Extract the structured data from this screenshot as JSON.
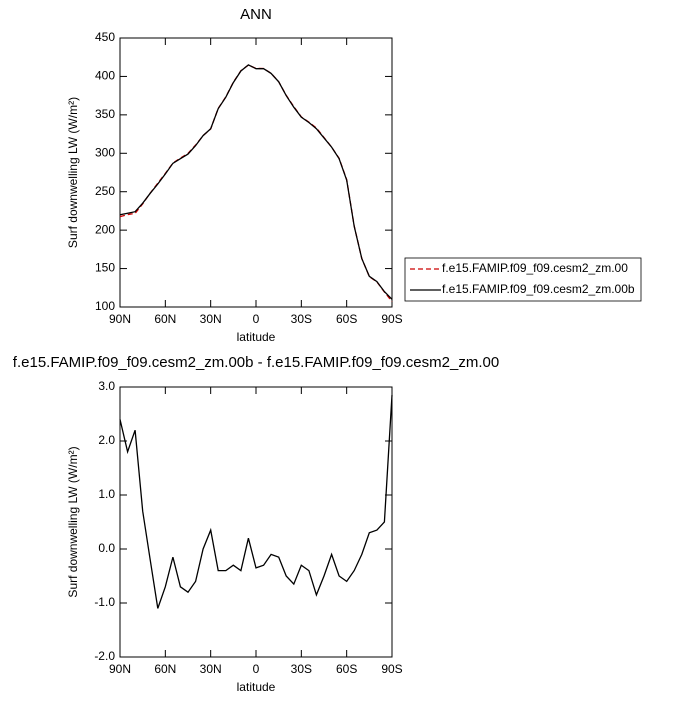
{
  "chart_data": [
    {
      "type": "line",
      "title": "ANN",
      "xlabel": "latitude",
      "ylabel": "Surf downwelling LW (W/m²)",
      "x": [
        90,
        85,
        80,
        75,
        70,
        65,
        60,
        55,
        50,
        45,
        40,
        35,
        30,
        25,
        20,
        15,
        10,
        5,
        0,
        -5,
        -10,
        -15,
        -20,
        -25,
        -30,
        -35,
        -40,
        -45,
        -50,
        -55,
        -60,
        -65,
        -70,
        -75,
        -80,
        -85,
        -90
      ],
      "xlim": [
        90,
        -90
      ],
      "xticks": [
        {
          "value": 90,
          "label": "90N"
        },
        {
          "value": 60,
          "label": "60N"
        },
        {
          "value": 30,
          "label": "30N"
        },
        0,
        {
          "value": -30,
          "label": "30S"
        },
        {
          "value": -60,
          "label": "60S"
        },
        {
          "value": -90,
          "label": "90S"
        }
      ],
      "ylim": [
        100,
        450
      ],
      "yticks": [
        100,
        150,
        200,
        250,
        300,
        350,
        400,
        450
      ],
      "legend": "right",
      "series": [
        {
          "name": "f.e15.FAMIP.f09_f09.cesm2_zm.00",
          "color": "#cc0000",
          "line_style": "dashed",
          "values": [
            217.6,
            220.2,
            221.8,
            234.3,
            248.2,
            261.1,
            273.7,
            287.2,
            293.7,
            299.8,
            310.6,
            323,
            331.7,
            358.4,
            373.4,
            392.3,
            407.4,
            414.8,
            410.4,
            410.3,
            404.1,
            393.2,
            375.5,
            360.7,
            347.3,
            340.4,
            332.9,
            320.5,
            308.1,
            293.5,
            265.6,
            205.4,
            163.1,
            139.7,
            132.7,
            119.5,
            107.2
          ]
        },
        {
          "name": "f.e15.FAMIP.f09_f09.cesm2_zm.00b",
          "color": "#000000",
          "line_style": "solid",
          "values": [
            220,
            222,
            224,
            235,
            248,
            260,
            273,
            287,
            293,
            299,
            310,
            323,
            332,
            358,
            373,
            392,
            407,
            415,
            410,
            410,
            404,
            393,
            375,
            360,
            347,
            340,
            332,
            320,
            308,
            293,
            265,
            205,
            163,
            140,
            133,
            120,
            110
          ]
        }
      ]
    },
    {
      "type": "line",
      "title": "f.e15.FAMIP.f09_f09.cesm2_zm.00b - f.e15.FAMIP.f09_f09.cesm2_zm.00",
      "xlabel": "latitude",
      "ylabel": "Surf downwelling LW (W/m²)",
      "x": [
        90,
        85,
        80,
        75,
        70,
        65,
        60,
        55,
        50,
        45,
        40,
        35,
        30,
        25,
        20,
        15,
        10,
        5,
        0,
        -5,
        -10,
        -15,
        -20,
        -25,
        -30,
        -35,
        -40,
        -45,
        -50,
        -55,
        -60,
        -65,
        -70,
        -75,
        -80,
        -85,
        -90
      ],
      "xlim": [
        90,
        -90
      ],
      "xticks": [
        {
          "value": 90,
          "label": "90N"
        },
        {
          "value": 60,
          "label": "60N"
        },
        {
          "value": 30,
          "label": "30N"
        },
        0,
        {
          "value": -30,
          "label": "30S"
        },
        {
          "value": -60,
          "label": "60S"
        },
        {
          "value": -90,
          "label": "90S"
        }
      ],
      "ylim": [
        -2,
        3
      ],
      "yticks": [
        {
          "value": -2,
          "label": "-2.0"
        },
        {
          "value": -1,
          "label": "-1.0"
        },
        {
          "value": 0,
          "label": "0.0"
        },
        {
          "value": 1,
          "label": "1.0"
        },
        {
          "value": 2,
          "label": "2.0"
        },
        {
          "value": 3,
          "label": "3.0"
        }
      ],
      "series": [
        {
          "color": "#000000",
          "line_style": "solid",
          "values": [
            2.4,
            1.8,
            2.2,
            0.7,
            -0.2,
            -1.1,
            -0.7,
            -0.15,
            -0.7,
            -0.8,
            -0.6,
            0.0,
            0.35,
            -0.4,
            -0.4,
            -0.3,
            -0.4,
            0.2,
            -0.35,
            -0.3,
            -0.1,
            -0.15,
            -0.5,
            -0.65,
            -0.3,
            -0.4,
            -0.85,
            -0.5,
            -0.1,
            -0.5,
            -0.6,
            -0.4,
            -0.1,
            0.3,
            0.35,
            0.5,
            2.85
          ]
        }
      ]
    }
  ]
}
